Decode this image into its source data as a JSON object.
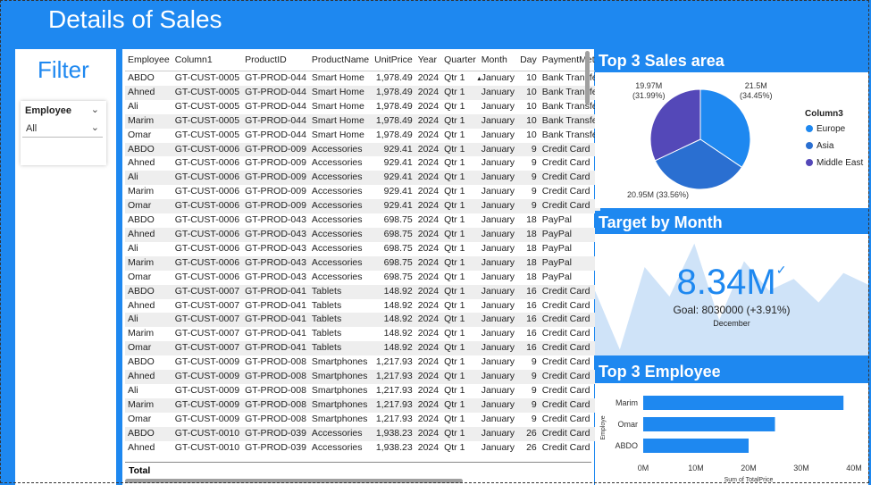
{
  "header": {
    "title": "Details of Sales"
  },
  "filter": {
    "title": "Filter",
    "slicer_label": "Employee",
    "slicer_value": "All"
  },
  "table": {
    "columns": [
      "Employee",
      "Column1",
      "ProductID",
      "ProductName",
      "UnitPrice",
      "Year",
      "Quarter",
      "Month",
      "Day",
      "PaymentMet"
    ],
    "rows": [
      [
        "ABDO",
        "GT-CUST-0005",
        "GT-PROD-044",
        "Smart Home",
        "1,978.49",
        "2024",
        "Qtr 1",
        "January",
        "10",
        "Bank Transfe"
      ],
      [
        "Ahned",
        "GT-CUST-0005",
        "GT-PROD-044",
        "Smart Home",
        "1,978.49",
        "2024",
        "Qtr 1",
        "January",
        "10",
        "Bank Transfe"
      ],
      [
        "Ali",
        "GT-CUST-0005",
        "GT-PROD-044",
        "Smart Home",
        "1,978.49",
        "2024",
        "Qtr 1",
        "January",
        "10",
        "Bank Transfe"
      ],
      [
        "Marim",
        "GT-CUST-0005",
        "GT-PROD-044",
        "Smart Home",
        "1,978.49",
        "2024",
        "Qtr 1",
        "January",
        "10",
        "Bank Transfe"
      ],
      [
        "Omar",
        "GT-CUST-0005",
        "GT-PROD-044",
        "Smart Home",
        "1,978.49",
        "2024",
        "Qtr 1",
        "January",
        "10",
        "Bank Transfe"
      ],
      [
        "ABDO",
        "GT-CUST-0006",
        "GT-PROD-009",
        "Accessories",
        "929.41",
        "2024",
        "Qtr 1",
        "January",
        "9",
        "Credit Card"
      ],
      [
        "Ahned",
        "GT-CUST-0006",
        "GT-PROD-009",
        "Accessories",
        "929.41",
        "2024",
        "Qtr 1",
        "January",
        "9",
        "Credit Card"
      ],
      [
        "Ali",
        "GT-CUST-0006",
        "GT-PROD-009",
        "Accessories",
        "929.41",
        "2024",
        "Qtr 1",
        "January",
        "9",
        "Credit Card"
      ],
      [
        "Marim",
        "GT-CUST-0006",
        "GT-PROD-009",
        "Accessories",
        "929.41",
        "2024",
        "Qtr 1",
        "January",
        "9",
        "Credit Card"
      ],
      [
        "Omar",
        "GT-CUST-0006",
        "GT-PROD-009",
        "Accessories",
        "929.41",
        "2024",
        "Qtr 1",
        "January",
        "9",
        "Credit Card"
      ],
      [
        "ABDO",
        "GT-CUST-0006",
        "GT-PROD-043",
        "Accessories",
        "698.75",
        "2024",
        "Qtr 1",
        "January",
        "18",
        "PayPal"
      ],
      [
        "Ahned",
        "GT-CUST-0006",
        "GT-PROD-043",
        "Accessories",
        "698.75",
        "2024",
        "Qtr 1",
        "January",
        "18",
        "PayPal"
      ],
      [
        "Ali",
        "GT-CUST-0006",
        "GT-PROD-043",
        "Accessories",
        "698.75",
        "2024",
        "Qtr 1",
        "January",
        "18",
        "PayPal"
      ],
      [
        "Marim",
        "GT-CUST-0006",
        "GT-PROD-043",
        "Accessories",
        "698.75",
        "2024",
        "Qtr 1",
        "January",
        "18",
        "PayPal"
      ],
      [
        "Omar",
        "GT-CUST-0006",
        "GT-PROD-043",
        "Accessories",
        "698.75",
        "2024",
        "Qtr 1",
        "January",
        "18",
        "PayPal"
      ],
      [
        "ABDO",
        "GT-CUST-0007",
        "GT-PROD-041",
        "Tablets",
        "148.92",
        "2024",
        "Qtr 1",
        "January",
        "16",
        "Credit Card"
      ],
      [
        "Ahned",
        "GT-CUST-0007",
        "GT-PROD-041",
        "Tablets",
        "148.92",
        "2024",
        "Qtr 1",
        "January",
        "16",
        "Credit Card"
      ],
      [
        "Ali",
        "GT-CUST-0007",
        "GT-PROD-041",
        "Tablets",
        "148.92",
        "2024",
        "Qtr 1",
        "January",
        "16",
        "Credit Card"
      ],
      [
        "Marim",
        "GT-CUST-0007",
        "GT-PROD-041",
        "Tablets",
        "148.92",
        "2024",
        "Qtr 1",
        "January",
        "16",
        "Credit Card"
      ],
      [
        "Omar",
        "GT-CUST-0007",
        "GT-PROD-041",
        "Tablets",
        "148.92",
        "2024",
        "Qtr 1",
        "January",
        "16",
        "Credit Card"
      ],
      [
        "ABDO",
        "GT-CUST-0009",
        "GT-PROD-008",
        "Smartphones",
        "1,217.93",
        "2024",
        "Qtr 1",
        "January",
        "9",
        "Credit Card"
      ],
      [
        "Ahned",
        "GT-CUST-0009",
        "GT-PROD-008",
        "Smartphones",
        "1,217.93",
        "2024",
        "Qtr 1",
        "January",
        "9",
        "Credit Card"
      ],
      [
        "Ali",
        "GT-CUST-0009",
        "GT-PROD-008",
        "Smartphones",
        "1,217.93",
        "2024",
        "Qtr 1",
        "January",
        "9",
        "Credit Card"
      ],
      [
        "Marim",
        "GT-CUST-0009",
        "GT-PROD-008",
        "Smartphones",
        "1,217.93",
        "2024",
        "Qtr 1",
        "January",
        "9",
        "Credit Card"
      ],
      [
        "Omar",
        "GT-CUST-0009",
        "GT-PROD-008",
        "Smartphones",
        "1,217.93",
        "2024",
        "Qtr 1",
        "January",
        "9",
        "Credit Card"
      ],
      [
        "ABDO",
        "GT-CUST-0010",
        "GT-PROD-039",
        "Accessories",
        "1,938.23",
        "2024",
        "Qtr 1",
        "January",
        "26",
        "Credit Card"
      ],
      [
        "Ahned",
        "GT-CUST-0010",
        "GT-PROD-039",
        "Accessories",
        "1,938.23",
        "2024",
        "Qtr 1",
        "January",
        "26",
        "Credit Card"
      ]
    ],
    "total_label": "Total"
  },
  "sales_area": {
    "title": "Top 3 Sales area",
    "legend_title": "Column3",
    "slices": [
      {
        "name": "Europe",
        "value": 21.5,
        "label": "21.5M",
        "pct": "(34.45%)",
        "color": "#1e88f0"
      },
      {
        "name": "Asia",
        "value": 20.95,
        "label": "20.95M (33.56%)",
        "pct": "",
        "color": "#2a6fd1"
      },
      {
        "name": "Middle East",
        "value": 19.97,
        "label": "19.97M",
        "pct": "(31.99%)",
        "color": "#5448b8"
      }
    ]
  },
  "target": {
    "title": "Target by Month",
    "value": "8.34M",
    "goal": "Goal: 8030000 (+3.91%)",
    "month": "December",
    "trend": [
      0.55,
      0.05,
      0.75,
      0.5,
      0.95,
      0.3,
      0.8,
      0.55,
      0.65,
      0.45,
      0.7,
      0.6
    ]
  },
  "employees": {
    "title": "Top 3 Employee",
    "chart_data": {
      "type": "bar",
      "categories": [
        "Marim",
        "Omar",
        "ABDO"
      ],
      "values": [
        38,
        25,
        20
      ],
      "ylabel": "Employe",
      "xlabel": "Sum of TotalPrice",
      "xticks": [
        "0M",
        "10M",
        "20M",
        "30M",
        "40M"
      ],
      "xlim": [
        0,
        40
      ],
      "color": "#1e88f0"
    }
  }
}
